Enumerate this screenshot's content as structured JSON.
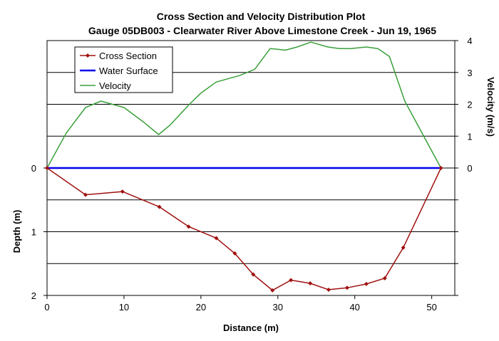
{
  "chart_data": {
    "type": "line",
    "title": "Cross Section and Velocity Distribution Plot",
    "subtitle": "Gauge 05DB003 - Clearwater River Above Limestone Creek - Jun 19, 1965",
    "xlabel": "Distance (m)",
    "ylabel_left": "Depth (m)",
    "ylabel_right": "Velocity (m/s)",
    "xlim": [
      0,
      53
    ],
    "xticks": [
      0,
      10,
      20,
      30,
      40,
      50
    ],
    "depth_lim": [
      -2.0,
      2.0
    ],
    "depth_ticks": [
      0,
      1,
      2
    ],
    "velocity_lim": [
      -4.0,
      4.0
    ],
    "velocity_ticks": [
      0,
      1,
      2,
      3,
      4
    ],
    "grid": true,
    "legend_position": "top-left",
    "series": [
      {
        "name": "Cross Section",
        "axis": "depth",
        "color": "#a01010",
        "marker": "diamond",
        "x": [
          0,
          5,
          9.8,
          14.6,
          18.4,
          22,
          24.4,
          26.8,
          29.3,
          31.7,
          34.2,
          36.6,
          39,
          41.5,
          43.9,
          46.3,
          51.2
        ],
        "y": [
          0,
          0.42,
          0.37,
          0.61,
          0.92,
          1.1,
          1.34,
          1.67,
          1.92,
          1.76,
          1.81,
          1.91,
          1.88,
          1.82,
          1.73,
          1.25,
          0
        ]
      },
      {
        "name": "Water Surface",
        "axis": "depth",
        "color": "#0000ee",
        "marker": "none",
        "x": [
          0,
          51.2
        ],
        "y": [
          0,
          0
        ]
      },
      {
        "name": "Velocity",
        "axis": "velocity",
        "color": "#3aa03a",
        "marker": "none",
        "x": [
          0,
          2.5,
          5,
          7,
          10,
          12.5,
          14.5,
          16,
          18.5,
          20,
          22,
          25,
          27,
          29,
          31,
          32.5,
          34.3,
          36.5,
          38,
          39.5,
          41.5,
          43,
          44.5,
          46.5,
          51.2
        ],
        "y": [
          0,
          1.1,
          1.9,
          2.1,
          1.9,
          1.45,
          1.05,
          1.35,
          2.0,
          2.35,
          2.7,
          2.9,
          3.1,
          3.75,
          3.7,
          3.8,
          3.95,
          3.8,
          3.75,
          3.75,
          3.8,
          3.75,
          3.5,
          2.1,
          0
        ]
      }
    ]
  }
}
